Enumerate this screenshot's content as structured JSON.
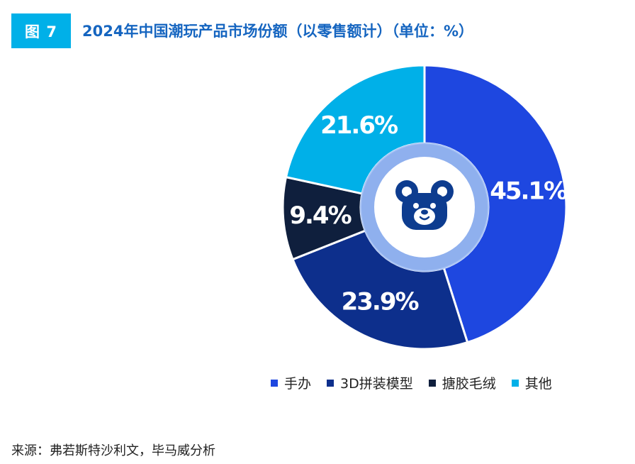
{
  "header": {
    "figure_label": "图 7",
    "title": "2024年中国潮玩产品市场份额（以零售额计）（单位：%）"
  },
  "chart_data": {
    "type": "pie",
    "variant": "donut",
    "categories": [
      "手办",
      "3D拼装模型",
      "搪胶毛绒",
      "其他"
    ],
    "values": [
      45.1,
      23.9,
      9.4,
      21.6
    ],
    "data_labels": [
      "45.1%",
      "23.9%",
      "9.4%",
      "21.6%"
    ],
    "colors": [
      "#1e47e0",
      "#0d2f8c",
      "#0f1f3d",
      "#00b0e8"
    ],
    "start_angle_deg": 0,
    "direction": "clockwise",
    "legend_position": "bottom",
    "center_icon": "teddy-bear-icon"
  },
  "footer": {
    "source": "来源：弗若斯特沙利文，毕马威分析"
  }
}
